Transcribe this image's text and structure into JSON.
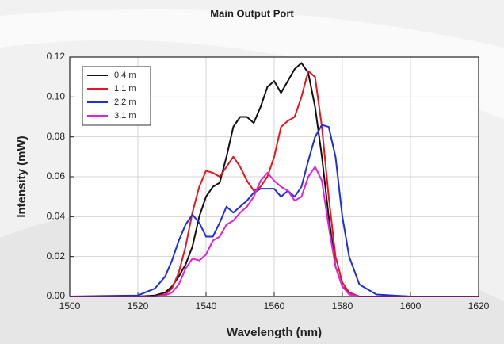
{
  "chart_data": {
    "type": "line",
    "title": "Main Output Port",
    "x_label": "Wavelength (nm)",
    "y_label": "Intensity (mW)",
    "x": [
      1500,
      1520,
      1525,
      1528,
      1530,
      1532,
      1534,
      1536,
      1538,
      1540,
      1542,
      1544,
      1546,
      1548,
      1550,
      1552,
      1554,
      1556,
      1558,
      1560,
      1562,
      1564,
      1566,
      1568,
      1570,
      1572,
      1574,
      1576,
      1578,
      1580,
      1582,
      1585,
      1590,
      1600,
      1620
    ],
    "series": [
      {
        "name": "0.4 m",
        "color": "#111111",
        "values": [
          0,
          0,
          0.0005,
          0.002,
          0.005,
          0.01,
          0.016,
          0.025,
          0.04,
          0.05,
          0.055,
          0.057,
          0.07,
          0.085,
          0.09,
          0.09,
          0.087,
          0.095,
          0.105,
          0.108,
          0.102,
          0.108,
          0.114,
          0.117,
          0.112,
          0.095,
          0.07,
          0.04,
          0.015,
          0.005,
          0.002,
          0,
          0,
          0,
          0
        ]
      },
      {
        "name": "1.1 m",
        "color": "#e8141e",
        "values": [
          0,
          0,
          0,
          0.001,
          0.004,
          0.012,
          0.025,
          0.042,
          0.055,
          0.063,
          0.062,
          0.06,
          0.065,
          0.07,
          0.065,
          0.058,
          0.053,
          0.055,
          0.06,
          0.07,
          0.085,
          0.088,
          0.09,
          0.1,
          0.113,
          0.11,
          0.085,
          0.05,
          0.02,
          0.007,
          0.002,
          0,
          0,
          0,
          0
        ]
      },
      {
        "name": "2.2 m",
        "color": "#1c2fd8",
        "values": [
          0,
          0.0005,
          0.004,
          0.01,
          0.018,
          0.028,
          0.036,
          0.041,
          0.037,
          0.03,
          0.03,
          0.037,
          0.045,
          0.042,
          0.045,
          0.048,
          0.052,
          0.054,
          0.054,
          0.054,
          0.05,
          0.053,
          0.05,
          0.055,
          0.068,
          0.08,
          0.086,
          0.085,
          0.07,
          0.04,
          0.02,
          0.006,
          0.001,
          0,
          0
        ]
      },
      {
        "name": "3.1 m",
        "color": "#e020e0",
        "values": [
          0,
          0,
          0,
          0.0005,
          0.002,
          0.006,
          0.014,
          0.019,
          0.018,
          0.021,
          0.028,
          0.03,
          0.036,
          0.038,
          0.042,
          0.045,
          0.05,
          0.058,
          0.062,
          0.058,
          0.055,
          0.053,
          0.048,
          0.05,
          0.06,
          0.065,
          0.058,
          0.035,
          0.015,
          0.005,
          0.001,
          0,
          0,
          0,
          0
        ]
      }
    ],
    "xlim": [
      1500,
      1620
    ],
    "xticks": [
      1500,
      1520,
      1540,
      1560,
      1580,
      1600,
      1620
    ],
    "ylim": [
      0,
      0.12
    ],
    "yticks": [
      {
        "value": 0,
        "label": "0.00"
      },
      0.02,
      0.04,
      0.06,
      0.08,
      {
        "value": 0.1,
        "label": "0.10"
      },
      0.12
    ],
    "grid": true,
    "legend": "upper left"
  }
}
